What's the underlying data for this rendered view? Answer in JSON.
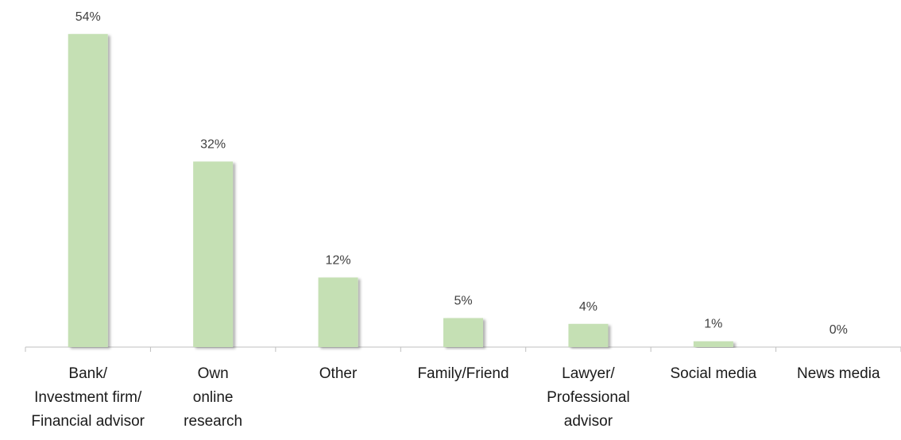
{
  "chart_data": {
    "type": "bar",
    "categories": [
      "Bank/\nInvestment firm/\nFinancial advisor",
      "Own\nonline\nresearch",
      "Other",
      "Family/Friend",
      "Lawyer/\nProfessional\nadvisor",
      "Social media",
      "News media"
    ],
    "values": [
      54,
      32,
      12,
      5,
      4,
      1,
      0
    ],
    "value_labels": [
      "54%",
      "32%",
      "12%",
      "5%",
      "4%",
      "1%",
      "0%"
    ],
    "color": "#c5e0b4"
  }
}
